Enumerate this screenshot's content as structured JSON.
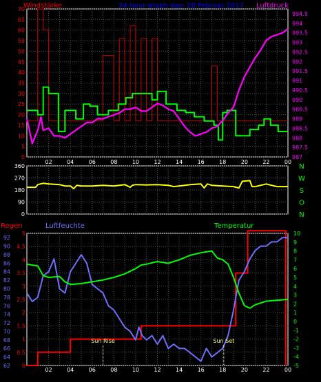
{
  "header": {
    "wind_title": "Windstärke",
    "mid_title": "24-hour graph day: 28 Februar 2017",
    "pressure_title": "Luftdruck",
    "rain_title": "Regen",
    "humidity_title": "Luftfeuchte",
    "temp_title": "Temperatur"
  },
  "colors": {
    "wind": "#ff0000",
    "mid_title": "#0000ff",
    "pressure": "#ff00ff",
    "gust": "#cc0000",
    "wind_avg": "#00ff00",
    "direction": "#ffff00",
    "humidity": "#7070ff",
    "temperature": "#00ff00",
    "rain": "#ff0000",
    "compass": "#00ff00",
    "sun": "#ffff80"
  },
  "x_ticks": [
    "02",
    "04",
    "06",
    "08",
    "10",
    "12",
    "14",
    "16",
    "18",
    "20",
    "22",
    "00"
  ],
  "sun": {
    "rise_label": "Sun Rise",
    "set_label": "Sun Set",
    "rise_x": 7.0,
    "set_x": 18.1
  },
  "chart_data": [
    {
      "type": "line",
      "title": "Windstärke / Luftdruck",
      "y_left_ticks": [
        "70",
        "65",
        "60",
        "55",
        "50",
        "45",
        "40",
        "35",
        "30",
        "25",
        "20",
        "15",
        "10",
        "5",
        "0"
      ],
      "y_right_ticks": [
        "994.5",
        "994",
        "993.5",
        "993",
        "992.5",
        "992",
        "991.5",
        "991",
        "990.5",
        "990",
        "989.5",
        "989",
        "988.5",
        "988",
        "987.5",
        "987"
      ],
      "ylim_left": [
        0,
        70
      ],
      "ylim_right": [
        987,
        994.75
      ],
      "series": [
        {
          "axis": "left",
          "style": "step",
          "color_key": "gust",
          "x": [
            0,
            1,
            1,
            1.5,
            1.5,
            2,
            2,
            7,
            7,
            8,
            8,
            8.5,
            8.5,
            9,
            9,
            9.5,
            9.5,
            10,
            10,
            10.5,
            10.5,
            11,
            11,
            11.5,
            11.5,
            12,
            12,
            17,
            17,
            17.5,
            17.5,
            24
          ],
          "y": [
            17,
            17,
            70,
            70,
            60,
            60,
            17,
            17,
            48,
            48,
            17,
            17,
            56,
            56,
            17,
            17,
            62,
            62,
            17,
            17,
            56,
            56,
            17,
            17,
            56,
            56,
            17,
            17,
            43,
            43,
            17,
            17
          ]
        },
        {
          "axis": "left",
          "style": "step",
          "color_key": "wind_avg",
          "x": [
            0,
            1,
            1,
            1.5,
            1.5,
            2,
            2,
            2.9,
            2.9,
            3.5,
            3.5,
            4.5,
            4.5,
            5.2,
            5.2,
            5.8,
            5.8,
            6.5,
            6.5,
            7.5,
            7.5,
            8.4,
            8.4,
            9.1,
            9.1,
            9.7,
            9.7,
            11.5,
            11.5,
            12,
            12,
            12.8,
            12.8,
            13.8,
            13.8,
            14.6,
            14.6,
            15.4,
            15.4,
            16.3,
            16.3,
            17.2,
            17.2,
            17.6,
            17.6,
            18,
            18,
            18.4,
            18.4,
            19.2,
            19.2,
            20.5,
            20.5,
            21.3,
            21.3,
            21.8,
            21.8,
            22.4,
            22.4,
            23.1,
            23.1,
            24
          ],
          "y": [
            22,
            22,
            20,
            20,
            33,
            33,
            30,
            30,
            12,
            12,
            22,
            22,
            18,
            18,
            25,
            25,
            24,
            24,
            20,
            20,
            22,
            22,
            25,
            25,
            28,
            28,
            30,
            30,
            27,
            27,
            31,
            31,
            25,
            25,
            22,
            22,
            21,
            21,
            19,
            19,
            17,
            17,
            15,
            15,
            8,
            8,
            21,
            21,
            22,
            22,
            10,
            10,
            13,
            13,
            15,
            15,
            18,
            18,
            15,
            15,
            12,
            12
          ]
        },
        {
          "axis": "right",
          "style": "line",
          "color_key": "pressure",
          "x": [
            0,
            0.5,
            1,
            1.3,
            1.5,
            2,
            2.5,
            3,
            3.5,
            4,
            4.5,
            5,
            5.5,
            6,
            6.5,
            7,
            7.5,
            8,
            8.5,
            9,
            9.5,
            10,
            10.5,
            11,
            11.5,
            12,
            12.5,
            13,
            13.5,
            14,
            14.5,
            15,
            15.5,
            16,
            16.5,
            17,
            17.5,
            18,
            18.5,
            19,
            19.5,
            20,
            20.5,
            21,
            21.5,
            22,
            22.5,
            23,
            23.5,
            24
          ],
          "y": [
            989,
            987.7,
            988.4,
            989.1,
            988.4,
            988.5,
            988.1,
            988.1,
            988,
            988.2,
            988.4,
            988.6,
            988.8,
            988.8,
            989,
            989,
            989.1,
            989.2,
            989.3,
            989.5,
            989.5,
            989.6,
            989.4,
            989.4,
            989.6,
            989.8,
            989.7,
            989.5,
            989.4,
            989,
            988.6,
            988.3,
            988.1,
            988.2,
            988.3,
            988.5,
            988.6,
            988.9,
            989.3,
            989.6,
            990.5,
            991.2,
            991.7,
            992.2,
            992.6,
            993.1,
            993.3,
            993.4,
            993.5,
            993.7
          ]
        }
      ]
    },
    {
      "type": "line",
      "title": "Windrichtung",
      "y_left_ticks": [
        "360",
        "270",
        "180",
        "90",
        "0"
      ],
      "compass_labels": [
        "N",
        "W",
        "S",
        "O",
        "N"
      ],
      "ylim": [
        0,
        360
      ],
      "series": [
        {
          "style": "line",
          "color_key": "direction",
          "x": [
            0,
            0.8,
            1,
            1.5,
            2,
            3,
            3.5,
            4,
            4.3,
            4.6,
            5,
            6,
            7,
            8,
            9,
            9.5,
            9.7,
            10,
            11,
            12,
            13,
            13.5,
            14,
            15,
            16,
            16.3,
            16.6,
            17,
            18,
            19,
            19.5,
            19.8,
            20.5,
            20.7,
            21,
            22,
            23,
            24
          ],
          "y": [
            200,
            200,
            220,
            230,
            225,
            220,
            210,
            210,
            190,
            215,
            210,
            210,
            215,
            210,
            220,
            200,
            215,
            220,
            218,
            220,
            215,
            205,
            210,
            220,
            225,
            195,
            225,
            215,
            210,
            205,
            195,
            245,
            250,
            205,
            205,
            225,
            205,
            205
          ]
        }
      ]
    },
    {
      "type": "line",
      "title": "Regen / Luftfeuchte / Temperatur",
      "y_left_rain_ticks": [
        "5",
        "4.5",
        "4",
        "3.5",
        "3",
        "2.5",
        "2",
        "1.5",
        "1",
        "0.5",
        "0"
      ],
      "y_left_humidity_ticks": [
        "92",
        "90",
        "88",
        "86",
        "84",
        "82",
        "80",
        "78",
        "76",
        "74",
        "72",
        "70",
        "68",
        "66",
        "64",
        "62"
      ],
      "y_right_ticks": [
        "10",
        "9",
        "8",
        "7",
        "6",
        "5",
        "4",
        "3",
        "2",
        "1",
        "0",
        "-1",
        "-2",
        "-3",
        "-4",
        "-5"
      ],
      "ylim_rain": [
        0,
        5
      ],
      "ylim_humidity": [
        62,
        93
      ],
      "ylim_temp": [
        -5,
        10
      ],
      "series": [
        {
          "axis": "rain",
          "style": "step",
          "color_key": "rain",
          "x": [
            0,
            1,
            1,
            4,
            4,
            10.5,
            10.5,
            19.2,
            19.2,
            20.3,
            20.3,
            23.8,
            23.8
          ],
          "y": [
            0,
            0,
            0.5,
            0.5,
            1,
            1,
            1.5,
            1.5,
            3.5,
            3.5,
            5.1,
            5.1,
            0
          ]
        },
        {
          "axis": "humidity",
          "style": "line",
          "color_key": "humidity",
          "x": [
            0,
            0.5,
            1,
            1.5,
            2,
            2.5,
            3,
            3.5,
            4,
            4.5,
            5,
            5.5,
            6,
            6.5,
            7,
            7.5,
            8,
            8.5,
            9,
            9.5,
            10,
            10.3,
            10.6,
            11,
            11.5,
            12,
            12.5,
            13,
            13.5,
            14,
            14.5,
            15,
            15.5,
            16,
            16.5,
            17,
            17.5,
            18,
            18.5,
            19,
            19.5,
            20,
            20.5,
            21,
            21.5,
            22,
            22.5,
            23,
            23.5,
            24
          ],
          "y": [
            79,
            77,
            78,
            83,
            84,
            87,
            80,
            79,
            84,
            86,
            88,
            86,
            81,
            80,
            79,
            76,
            75,
            73,
            71,
            70,
            68,
            71,
            69,
            68,
            69,
            67,
            69,
            66,
            67,
            66,
            66,
            65,
            64,
            63,
            66,
            64,
            65,
            66,
            69,
            75,
            82,
            84,
            87,
            89,
            90,
            90,
            91,
            91,
            92,
            92
          ]
        },
        {
          "axis": "temp",
          "style": "line",
          "color_key": "temperature",
          "x": [
            0,
            0.5,
            1,
            1.5,
            2,
            3,
            3.5,
            4,
            5,
            6,
            7,
            8,
            9,
            10,
            10.5,
            11,
            12,
            13,
            14,
            15,
            16,
            17,
            17.5,
            18,
            18.5,
            19,
            19.5,
            20,
            20.5,
            21,
            22,
            23,
            24
          ],
          "y": [
            6.5,
            6.4,
            6.3,
            5.2,
            5.0,
            5.1,
            4.5,
            4.2,
            4.3,
            4.5,
            4.7,
            5.0,
            5.4,
            6.0,
            6.4,
            6.5,
            6.8,
            6.6,
            7.0,
            7.5,
            7.8,
            8.0,
            7.2,
            7.0,
            6.5,
            5.0,
            3.2,
            1.8,
            1.5,
            1.9,
            2.3,
            2.4,
            2.5
          ]
        }
      ]
    }
  ]
}
